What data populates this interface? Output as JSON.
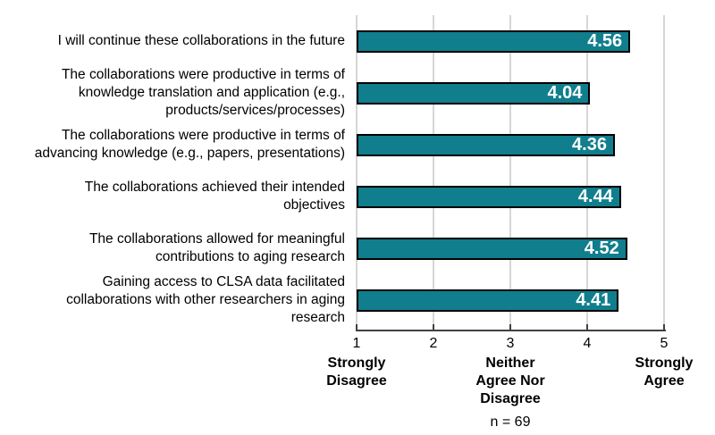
{
  "chart_data": {
    "type": "bar",
    "orientation": "horizontal",
    "title": "",
    "categories": [
      "I will continue these collaborations in the future",
      "The collaborations were productive in terms of\nknowledge translation and application (e.g.,\nproducts/services/processes)",
      "The collaborations were productive in terms of\nadvancing knowledge (e.g., papers, presentations)",
      "The collaborations achieved their intended\nobjectives",
      "The collaborations allowed for meaningful\ncontributions to aging research",
      "Gaining access to CLSA data facilitated\ncollaborations with other researchers in aging\nresearch"
    ],
    "values": [
      4.56,
      4.04,
      4.36,
      4.44,
      4.52,
      4.41
    ],
    "value_labels": [
      "4.56",
      "4.04",
      "4.36",
      "4.44",
      "4.52",
      "4.41"
    ],
    "xlabel": "",
    "ylabel": "",
    "xlim": [
      1,
      5
    ],
    "grid": true,
    "legend": false,
    "ticks": [
      {
        "value": 1,
        "number": "1",
        "caption": "Strongly\nDisagree"
      },
      {
        "value": 2,
        "number": "2",
        "caption": ""
      },
      {
        "value": 3,
        "number": "3",
        "caption": "Neither\nAgree Nor\nDisagree"
      },
      {
        "value": 4,
        "number": "4",
        "caption": ""
      },
      {
        "value": 5,
        "number": "5",
        "caption": "Strongly\nAgree"
      }
    ],
    "footnote": "n = 69",
    "colors": {
      "bar_fill": "#107E8D",
      "bar_border": "#000000",
      "gridline": "#D6D6D6",
      "axis": "#404040",
      "value_text": "#FFFFFF",
      "label_text": "#000000"
    }
  }
}
